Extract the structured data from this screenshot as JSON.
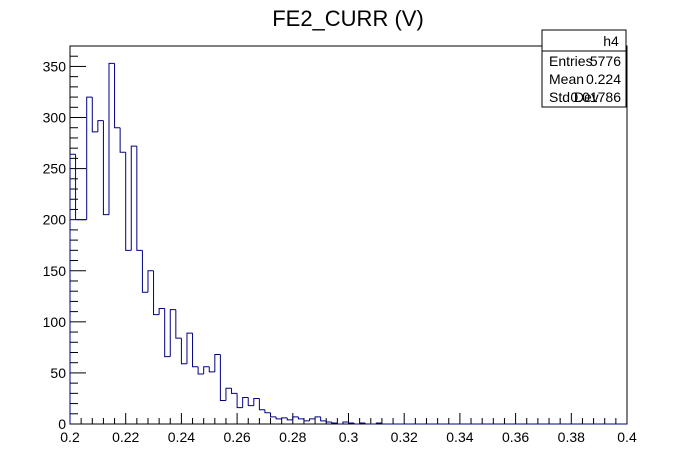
{
  "chart_data": {
    "type": "bar",
    "title": "FE2_CURR (V)",
    "xlabel": "",
    "ylabel": "",
    "xlim": [
      0.2,
      0.4
    ],
    "ylim": [
      0,
      370
    ],
    "bin_width": 0.002,
    "x_ticks": [
      0.2,
      0.22,
      0.24,
      0.26,
      0.28,
      0.3,
      0.32,
      0.34,
      0.36,
      0.38,
      0.4
    ],
    "x_tick_labels": [
      "0.2",
      "0.22",
      "0.24",
      "0.26",
      "0.28",
      "0.3",
      "0.32",
      "0.34",
      "0.36",
      "0.38",
      "0.4"
    ],
    "y_ticks": [
      0,
      50,
      100,
      150,
      200,
      250,
      300,
      350
    ],
    "y_tick_labels": [
      "0",
      "50",
      "100",
      "150",
      "200",
      "250",
      "300",
      "350"
    ],
    "grid": false,
    "line_color": "#000080",
    "x": [
      0.2,
      0.202,
      0.204,
      0.206,
      0.208,
      0.21,
      0.212,
      0.214,
      0.216,
      0.218,
      0.22,
      0.222,
      0.224,
      0.226,
      0.228,
      0.23,
      0.232,
      0.234,
      0.236,
      0.238,
      0.24,
      0.242,
      0.244,
      0.246,
      0.248,
      0.25,
      0.252,
      0.254,
      0.256,
      0.258,
      0.26,
      0.262,
      0.264,
      0.266,
      0.268,
      0.27,
      0.272,
      0.274,
      0.276,
      0.278,
      0.28,
      0.282,
      0.284,
      0.286,
      0.288,
      0.29,
      0.292,
      0.294,
      0.296,
      0.298,
      0.3,
      0.302,
      0.304,
      0.306,
      0.308,
      0.31,
      0.312,
      0.314,
      0.316,
      0.318,
      0.32,
      0.322,
      0.324,
      0.326,
      0.328,
      0.33,
      0.332,
      0.334,
      0.336,
      0.338,
      0.34,
      0.342,
      0.344,
      0.346,
      0.348,
      0.35,
      0.352,
      0.354,
      0.356,
      0.358,
      0.36,
      0.362,
      0.364,
      0.366,
      0.368,
      0.37,
      0.372,
      0.374,
      0.376,
      0.378,
      0.38,
      0.382,
      0.384,
      0.386,
      0.388,
      0.39,
      0.392,
      0.394,
      0.396,
      0.398
    ],
    "values": [
      264,
      200,
      200,
      320,
      286,
      297,
      205,
      353,
      290,
      266,
      170,
      272,
      170,
      129,
      150,
      107,
      113,
      66,
      112,
      84,
      59,
      89,
      56,
      49,
      56,
      51,
      68,
      23,
      35,
      30,
      16,
      26,
      18,
      25,
      14,
      11,
      7,
      5,
      6,
      4,
      7,
      5,
      3,
      5,
      7,
      3,
      2,
      1,
      0,
      2,
      1,
      0,
      1,
      0,
      0,
      1,
      0,
      0,
      0,
      0,
      0,
      0,
      0,
      0,
      0,
      0,
      0,
      0,
      0,
      0,
      0,
      0,
      0,
      0,
      0,
      0,
      0,
      0,
      0,
      0,
      0,
      0,
      0,
      0,
      0,
      0,
      0,
      0,
      0,
      0,
      0,
      0,
      0,
      0,
      0,
      0,
      0,
      0,
      0,
      0
    ],
    "stats_box": {
      "name": "h4",
      "rows": [
        {
          "label": "Entries",
          "value": "5776"
        },
        {
          "label": "Mean",
          "value": "0.224"
        },
        {
          "label": "Std Dev",
          "value": "0.01786"
        }
      ],
      "position": "top-right"
    }
  }
}
